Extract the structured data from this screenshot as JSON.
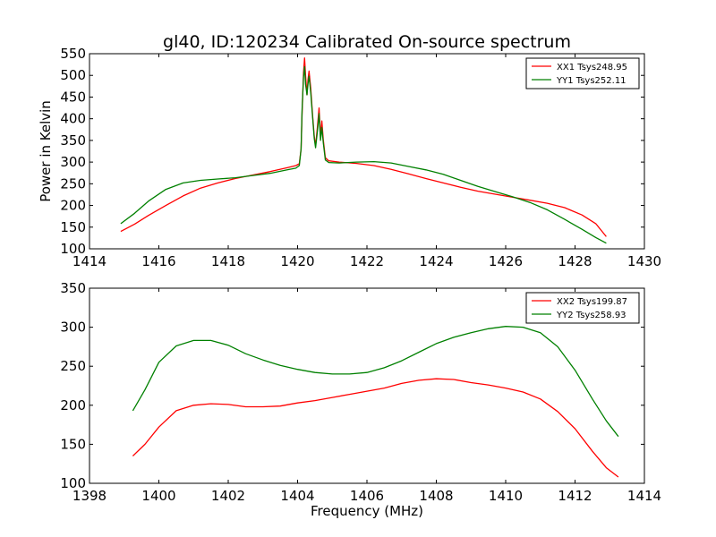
{
  "chart_data": [
    {
      "type": "line",
      "title": "gl40, ID:120234 Calibrated On-source spectrum",
      "xlabel": "",
      "ylabel": "Power in Kelvin",
      "xlim": [
        1414,
        1430
      ],
      "ylim": [
        100,
        550
      ],
      "xticks": [
        1414,
        1416,
        1418,
        1420,
        1422,
        1424,
        1426,
        1428,
        1430
      ],
      "yticks": [
        100,
        150,
        200,
        250,
        300,
        350,
        400,
        450,
        500,
        550
      ],
      "grid": false,
      "legend_position": "top-right",
      "series": [
        {
          "name": "XX1 Tsys248.95",
          "color": "#ff0000",
          "points": [
            [
              1414.9,
              140
            ],
            [
              1415.3,
              157
            ],
            [
              1415.7,
              177
            ],
            [
              1416.2,
              200
            ],
            [
              1416.7,
              222
            ],
            [
              1417.2,
              240
            ],
            [
              1417.7,
              252
            ],
            [
              1418.2,
              262
            ],
            [
              1418.7,
              270
            ],
            [
              1419.2,
              278
            ],
            [
              1419.7,
              287
            ],
            [
              1419.95,
              292
            ],
            [
              1420.05,
              296
            ],
            [
              1420.1,
              330
            ],
            [
              1420.13,
              410
            ],
            [
              1420.17,
              505
            ],
            [
              1420.2,
              540
            ],
            [
              1420.23,
              500
            ],
            [
              1420.27,
              455
            ],
            [
              1420.3,
              490
            ],
            [
              1420.33,
              510
            ],
            [
              1420.38,
              470
            ],
            [
              1420.43,
              410
            ],
            [
              1420.48,
              360
            ],
            [
              1420.52,
              338
            ],
            [
              1420.57,
              380
            ],
            [
              1420.62,
              425
            ],
            [
              1420.66,
              360
            ],
            [
              1420.7,
              395
            ],
            [
              1420.74,
              352
            ],
            [
              1420.8,
              310
            ],
            [
              1420.9,
              303
            ],
            [
              1421.2,
              300
            ],
            [
              1421.7,
              297
            ],
            [
              1422.2,
              292
            ],
            [
              1422.7,
              283
            ],
            [
              1423.2,
              273
            ],
            [
              1423.7,
              262
            ],
            [
              1424.2,
              252
            ],
            [
              1424.7,
              242
            ],
            [
              1425.2,
              233
            ],
            [
              1425.7,
              226
            ],
            [
              1426.2,
              219
            ],
            [
              1426.7,
              212
            ],
            [
              1427.2,
              205
            ],
            [
              1427.7,
              195
            ],
            [
              1428.2,
              178
            ],
            [
              1428.6,
              158
            ],
            [
              1428.9,
              128
            ]
          ]
        },
        {
          "name": "YY1 Tsys252.11",
          "color": "#008000",
          "points": [
            [
              1414.9,
              158
            ],
            [
              1415.3,
              182
            ],
            [
              1415.7,
              210
            ],
            [
              1416.2,
              237
            ],
            [
              1416.7,
              252
            ],
            [
              1417.2,
              258
            ],
            [
              1417.7,
              261
            ],
            [
              1418.2,
              264
            ],
            [
              1418.7,
              269
            ],
            [
              1419.2,
              274
            ],
            [
              1419.7,
              282
            ],
            [
              1419.95,
              286
            ],
            [
              1420.05,
              292
            ],
            [
              1420.1,
              330
            ],
            [
              1420.13,
              420
            ],
            [
              1420.17,
              495
            ],
            [
              1420.2,
              520
            ],
            [
              1420.23,
              480
            ],
            [
              1420.27,
              455
            ],
            [
              1420.3,
              480
            ],
            [
              1420.33,
              498
            ],
            [
              1420.38,
              460
            ],
            [
              1420.43,
              405
            ],
            [
              1420.48,
              355
            ],
            [
              1420.52,
              333
            ],
            [
              1420.57,
              370
            ],
            [
              1420.62,
              412
            ],
            [
              1420.66,
              350
            ],
            [
              1420.7,
              380
            ],
            [
              1420.74,
              345
            ],
            [
              1420.8,
              305
            ],
            [
              1420.9,
              299
            ],
            [
              1421.2,
              298
            ],
            [
              1421.7,
              300
            ],
            [
              1422.2,
              301
            ],
            [
              1422.7,
              298
            ],
            [
              1423.2,
              290
            ],
            [
              1423.7,
              282
            ],
            [
              1424.2,
              272
            ],
            [
              1424.7,
              258
            ],
            [
              1425.2,
              244
            ],
            [
              1425.7,
              232
            ],
            [
              1426.2,
              220
            ],
            [
              1426.7,
              207
            ],
            [
              1427.2,
              190
            ],
            [
              1427.7,
              168
            ],
            [
              1428.2,
              145
            ],
            [
              1428.6,
              126
            ],
            [
              1428.9,
              113
            ]
          ]
        }
      ]
    },
    {
      "type": "line",
      "title": "",
      "xlabel": "Frequency (MHz)",
      "ylabel": "",
      "xlim": [
        1398,
        1414
      ],
      "ylim": [
        100,
        350
      ],
      "xticks": [
        1398,
        1400,
        1402,
        1404,
        1406,
        1408,
        1410,
        1412,
        1414
      ],
      "yticks": [
        100,
        150,
        200,
        250,
        300,
        350
      ],
      "grid": false,
      "legend_position": "top-right",
      "series": [
        {
          "name": "XX2 Tsys199.87",
          "color": "#ff0000",
          "points": [
            [
              1399.25,
              135
            ],
            [
              1399.6,
              150
            ],
            [
              1400.0,
              172
            ],
            [
              1400.5,
              193
            ],
            [
              1401.0,
              200
            ],
            [
              1401.5,
              202
            ],
            [
              1402.0,
              201
            ],
            [
              1402.5,
              198
            ],
            [
              1403.0,
              198
            ],
            [
              1403.5,
              199
            ],
            [
              1404.0,
              203
            ],
            [
              1404.5,
              206
            ],
            [
              1405.0,
              210
            ],
            [
              1405.5,
              214
            ],
            [
              1406.0,
              218
            ],
            [
              1406.5,
              222
            ],
            [
              1407.0,
              228
            ],
            [
              1407.5,
              232
            ],
            [
              1408.0,
              234
            ],
            [
              1408.5,
              233
            ],
            [
              1409.0,
              229
            ],
            [
              1409.5,
              226
            ],
            [
              1410.0,
              222
            ],
            [
              1410.5,
              217
            ],
            [
              1411.0,
              208
            ],
            [
              1411.5,
              192
            ],
            [
              1412.0,
              170
            ],
            [
              1412.5,
              141
            ],
            [
              1412.9,
              120
            ],
            [
              1413.25,
              108
            ]
          ]
        },
        {
          "name": "YY2 Tsys258.93",
          "color": "#008000",
          "points": [
            [
              1399.25,
              193
            ],
            [
              1399.6,
              220
            ],
            [
              1400.0,
              255
            ],
            [
              1400.5,
              276
            ],
            [
              1401.0,
              283
            ],
            [
              1401.5,
              283
            ],
            [
              1402.0,
              277
            ],
            [
              1402.5,
              266
            ],
            [
              1403.0,
              258
            ],
            [
              1403.5,
              251
            ],
            [
              1404.0,
              246
            ],
            [
              1404.5,
              242
            ],
            [
              1405.0,
              240
            ],
            [
              1405.5,
              240
            ],
            [
              1406.0,
              242
            ],
            [
              1406.5,
              248
            ],
            [
              1407.0,
              257
            ],
            [
              1407.5,
              268
            ],
            [
              1408.0,
              279
            ],
            [
              1408.5,
              287
            ],
            [
              1409.0,
              293
            ],
            [
              1409.5,
              298
            ],
            [
              1410.0,
              301
            ],
            [
              1410.5,
              300
            ],
            [
              1411.0,
              293
            ],
            [
              1411.5,
              275
            ],
            [
              1412.0,
              245
            ],
            [
              1412.5,
              208
            ],
            [
              1412.9,
              180
            ],
            [
              1413.25,
              160
            ]
          ]
        }
      ]
    }
  ]
}
